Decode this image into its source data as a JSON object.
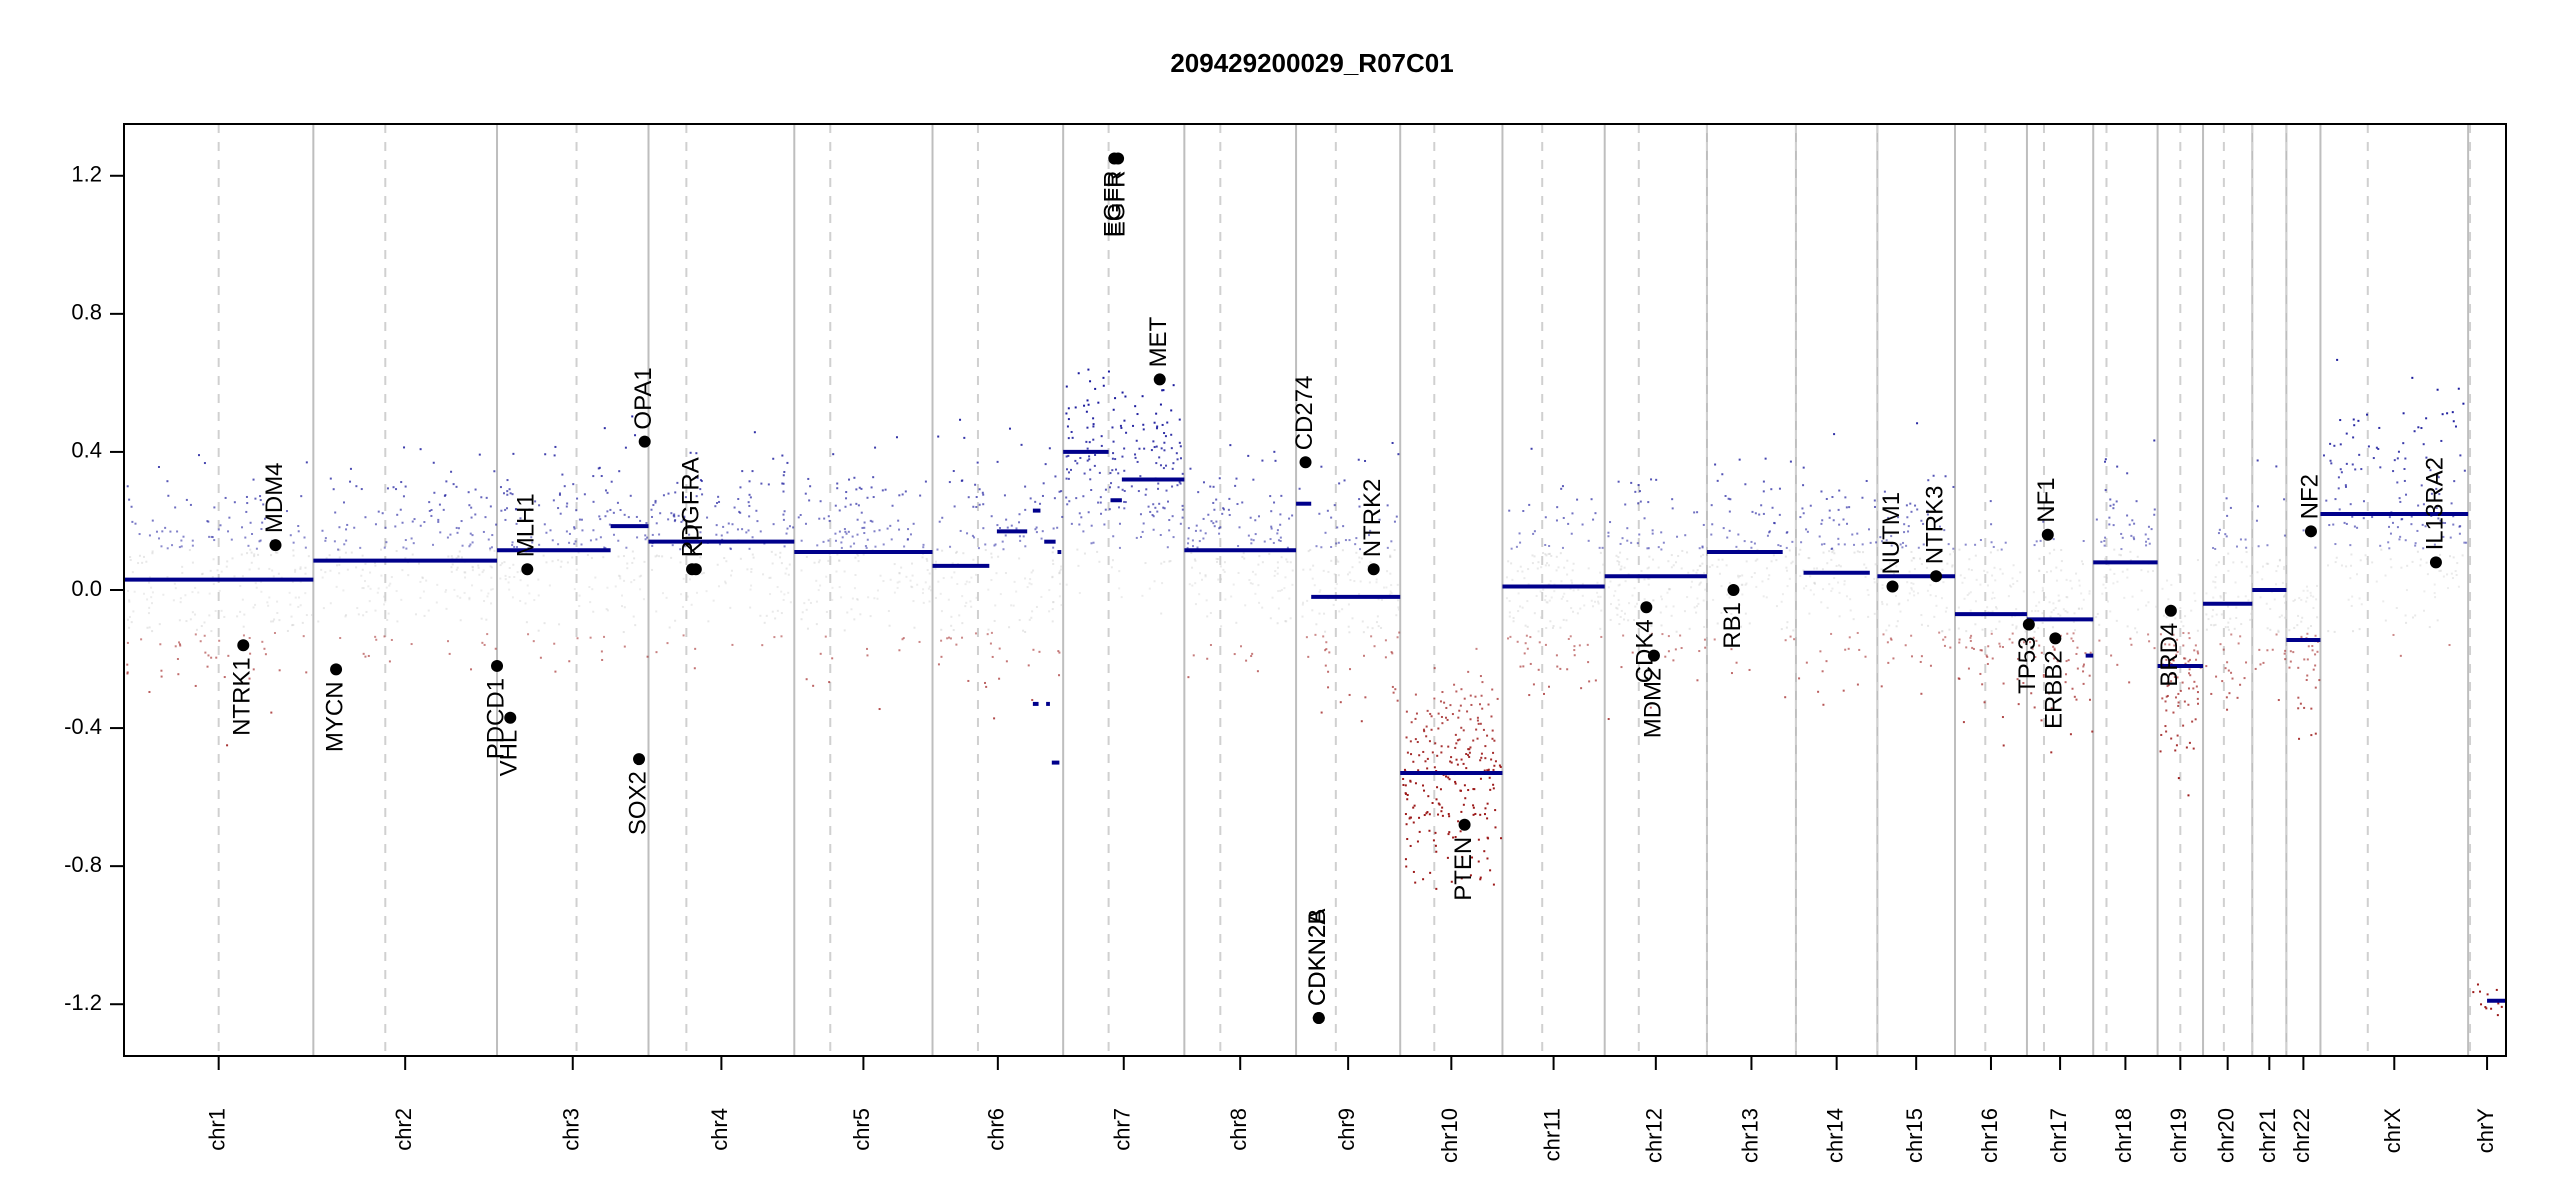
{
  "chart_data": {
    "type": "scatter",
    "title": "209429200029_R07C01",
    "ylim": [
      -1.35,
      1.35
    ],
    "yticks": [
      -1.2,
      -0.8,
      -0.4,
      0.0,
      0.4,
      0.8,
      1.2
    ],
    "ytick_labels": [
      "-1.2",
      "-0.8",
      "-0.4",
      "0.0",
      "0.4",
      "0.8",
      "1.2"
    ],
    "grid": "vertical chromosome boundaries (solid) and centromeres (dashed)",
    "colors": {
      "positive": "#1a1a9c",
      "negative": "#9c1a1a",
      "neutral": "#cccccc",
      "segment": "#00008b",
      "boundary": "#bebebe"
    },
    "chromosomes": [
      {
        "name": "chr1",
        "start": 0,
        "end": 1.0,
        "cent": 0.5
      },
      {
        "name": "chr2",
        "start": 1.0,
        "end": 1.97,
        "cent": 1.38
      },
      {
        "name": "chr3",
        "start": 1.97,
        "end": 2.77,
        "cent": 2.39
      },
      {
        "name": "chr4",
        "start": 2.77,
        "end": 3.54,
        "cent": 2.97
      },
      {
        "name": "chr5",
        "start": 3.54,
        "end": 4.27,
        "cent": 3.73
      },
      {
        "name": "chr6",
        "start": 4.27,
        "end": 4.96,
        "cent": 4.51
      },
      {
        "name": "chr7",
        "start": 4.96,
        "end": 5.6,
        "cent": 5.2
      },
      {
        "name": "chr8",
        "start": 5.6,
        "end": 6.19,
        "cent": 5.79
      },
      {
        "name": "chr9",
        "start": 6.19,
        "end": 6.74,
        "cent": 6.4
      },
      {
        "name": "chr10",
        "start": 6.74,
        "end": 7.28,
        "cent": 6.92
      },
      {
        "name": "chr11",
        "start": 7.28,
        "end": 7.82,
        "cent": 7.49
      },
      {
        "name": "chr12",
        "start": 7.82,
        "end": 8.36,
        "cent": 8.0
      },
      {
        "name": "chr13",
        "start": 8.36,
        "end": 8.83,
        "cent": 8.36
      },
      {
        "name": "chr14",
        "start": 8.83,
        "end": 9.26,
        "cent": 8.83
      },
      {
        "name": "chr15",
        "start": 9.26,
        "end": 9.67,
        "cent": 9.26
      },
      {
        "name": "chr16",
        "start": 9.67,
        "end": 10.05,
        "cent": 9.83
      },
      {
        "name": "chr17",
        "start": 10.05,
        "end": 10.4,
        "cent": 10.14
      },
      {
        "name": "chr18",
        "start": 10.4,
        "end": 10.74,
        "cent": 10.47
      },
      {
        "name": "chr19",
        "start": 10.74,
        "end": 10.98,
        "cent": 10.86
      },
      {
        "name": "chr20",
        "start": 10.98,
        "end": 11.24,
        "cent": 11.09
      },
      {
        "name": "chr21",
        "start": 11.24,
        "end": 11.42,
        "cent": 11.24
      },
      {
        "name": "chr22",
        "start": 11.42,
        "end": 11.6,
        "cent": 11.42
      },
      {
        "name": "chrX",
        "start": 11.6,
        "end": 12.38,
        "cent": 11.85
      },
      {
        "name": "chrY",
        "start": 12.38,
        "end": 12.58,
        "cent": 12.39
      }
    ],
    "segments": [
      {
        "chr": "chr1",
        "x0": 0.0,
        "x1": 1.0,
        "y": 0.03
      },
      {
        "chr": "chr2",
        "x0": 1.0,
        "x1": 1.97,
        "y": 0.085
      },
      {
        "chr": "chr3",
        "x0": 1.97,
        "x1": 2.57,
        "y": 0.115
      },
      {
        "chr": "chr3",
        "x0": 2.57,
        "x1": 2.77,
        "y": 0.185
      },
      {
        "chr": "chr4",
        "x0": 2.77,
        "x1": 3.54,
        "y": 0.14
      },
      {
        "chr": "chr5",
        "x0": 3.54,
        "x1": 4.27,
        "y": 0.11
      },
      {
        "chr": "chr6",
        "x0": 4.27,
        "x1": 4.57,
        "y": 0.07
      },
      {
        "chr": "chr6",
        "x0": 4.61,
        "x1": 4.77,
        "y": 0.17
      },
      {
        "chr": "chr6",
        "x0": 4.8,
        "x1": 4.84,
        "y": 0.23
      },
      {
        "chr": "chr6",
        "x0": 4.86,
        "x1": 4.92,
        "y": 0.14
      },
      {
        "chr": "chr6",
        "x0": 4.93,
        "x1": 4.95,
        "y": 0.11
      },
      {
        "chr": "chr6",
        "x0": 4.8,
        "x1": 4.83,
        "y": -0.33
      },
      {
        "chr": "chr6",
        "x0": 4.87,
        "x1": 4.89,
        "y": -0.33
      },
      {
        "chr": "chr6",
        "x0": 4.9,
        "x1": 4.94,
        "y": -0.5
      },
      {
        "chr": "chr7",
        "x0": 4.96,
        "x1": 5.2,
        "y": 0.4
      },
      {
        "chr": "chr7",
        "x0": 5.21,
        "x1": 5.27,
        "y": 0.26
      },
      {
        "chr": "chr7",
        "x0": 5.27,
        "x1": 5.6,
        "y": 0.32
      },
      {
        "chr": "chr8",
        "x0": 5.6,
        "x1": 6.19,
        "y": 0.115
      },
      {
        "chr": "chr9",
        "x0": 6.19,
        "x1": 6.27,
        "y": 0.25
      },
      {
        "chr": "chr9",
        "x0": 6.27,
        "x1": 6.74,
        "y": -0.02
      },
      {
        "chr": "chr10",
        "x0": 6.74,
        "x1": 7.28,
        "y": -0.53
      },
      {
        "chr": "chr11",
        "x0": 7.28,
        "x1": 7.82,
        "y": 0.01
      },
      {
        "chr": "chr12",
        "x0": 7.82,
        "x1": 8.36,
        "y": 0.04
      },
      {
        "chr": "chr13",
        "x0": 8.36,
        "x1": 8.76,
        "y": 0.11
      },
      {
        "chr": "chr14",
        "x0": 8.87,
        "x1": 9.22,
        "y": 0.05
      },
      {
        "chr": "chr15",
        "x0": 9.26,
        "x1": 9.67,
        "y": 0.04
      },
      {
        "chr": "chr16",
        "x0": 9.67,
        "x1": 10.05,
        "y": -0.07
      },
      {
        "chr": "chr17",
        "x0": 10.05,
        "x1": 10.4,
        "y": -0.085
      },
      {
        "chr": "chr17",
        "x0": 10.36,
        "x1": 10.4,
        "y": -0.19
      },
      {
        "chr": "chr18",
        "x0": 10.4,
        "x1": 10.74,
        "y": 0.08
      },
      {
        "chr": "chr19",
        "x0": 10.74,
        "x1": 10.98,
        "y": -0.22
      },
      {
        "chr": "chr20",
        "x0": 10.98,
        "x1": 11.24,
        "y": -0.04
      },
      {
        "chr": "chr21",
        "x0": 11.24,
        "x1": 11.42,
        "y": 0.0
      },
      {
        "chr": "chr22",
        "x0": 11.42,
        "x1": 11.6,
        "y": -0.145
      },
      {
        "chr": "chrX",
        "x0": 11.6,
        "x1": 12.38,
        "y": 0.22
      },
      {
        "chr": "chrY",
        "x0": 12.48,
        "x1": 12.58,
        "y": -1.19
      }
    ],
    "genes": [
      {
        "name": "NTRK1",
        "x": 0.63,
        "y": -0.16,
        "label_side": "below"
      },
      {
        "name": "MDM4",
        "x": 0.8,
        "y": 0.13,
        "label_side": "above"
      },
      {
        "name": "MYCN",
        "x": 1.12,
        "y": -0.23,
        "label_side": "below"
      },
      {
        "name": "PDCD1",
        "x": 1.97,
        "y": -0.22,
        "label_side": "below"
      },
      {
        "name": "VHL",
        "x": 2.04,
        "y": -0.37,
        "label_side": "below"
      },
      {
        "name": "MLH1",
        "x": 2.13,
        "y": 0.06,
        "label_side": "above"
      },
      {
        "name": "SOX2",
        "x": 2.72,
        "y": -0.49,
        "label_side": "below"
      },
      {
        "name": "OPA1",
        "x": 2.75,
        "y": 0.43,
        "label_side": "above"
      },
      {
        "name": "PDGFRA",
        "x": 3.0,
        "y": 0.06,
        "label_side": "above"
      },
      {
        "name": "KIT",
        "x": 3.02,
        "y": 0.06,
        "label_side": "above"
      },
      {
        "name": "EGFR",
        "x": 5.23,
        "y": 1.25,
        "label_side": "below"
      },
      {
        "name": "EGFR",
        "x": 5.25,
        "y": 1.25,
        "label_side": "below"
      },
      {
        "name": "MET",
        "x": 5.47,
        "y": 0.61,
        "label_side": "above"
      },
      {
        "name": "CD274",
        "x": 6.24,
        "y": 0.37,
        "label_side": "above"
      },
      {
        "name": "CDKN2A",
        "x": 6.31,
        "y": -1.24,
        "label_side": "above"
      },
      {
        "name": "CDKN2B",
        "x": 6.31,
        "y": -1.24,
        "label_side": "above"
      },
      {
        "name": "NTRK2",
        "x": 6.6,
        "y": 0.06,
        "label_side": "above"
      },
      {
        "name": "PTEN",
        "x": 7.08,
        "y": -0.68,
        "label_side": "below"
      },
      {
        "name": "CDK4",
        "x": 8.04,
        "y": -0.05,
        "label_side": "below"
      },
      {
        "name": "MDM2",
        "x": 8.08,
        "y": -0.19,
        "label_side": "below"
      },
      {
        "name": "RB1",
        "x": 8.5,
        "y": 0.0,
        "label_side": "below"
      },
      {
        "name": "NUTM1",
        "x": 9.34,
        "y": 0.01,
        "label_side": "above"
      },
      {
        "name": "NTRK3",
        "x": 9.57,
        "y": 0.04,
        "label_side": "above"
      },
      {
        "name": "TP53",
        "x": 10.06,
        "y": -0.1,
        "label_side": "below"
      },
      {
        "name": "NF1",
        "x": 10.16,
        "y": 0.16,
        "label_side": "above"
      },
      {
        "name": "ERBB2",
        "x": 10.2,
        "y": -0.14,
        "label_side": "below"
      },
      {
        "name": "BRD4",
        "x": 10.81,
        "y": -0.06,
        "label_side": "below"
      },
      {
        "name": "NF2",
        "x": 11.55,
        "y": 0.17,
        "label_side": "above"
      },
      {
        "name": "IL13RA2",
        "x": 12.21,
        "y": 0.08,
        "label_side": "above"
      }
    ],
    "probe_density": [
      {
        "chr": "chr1",
        "mean": 0.03,
        "sd": 0.22,
        "n": 260
      },
      {
        "chr": "chr2",
        "mean": 0.085,
        "sd": 0.2,
        "n": 240
      },
      {
        "chr": "chr3",
        "mean": 0.13,
        "sd": 0.2,
        "n": 200
      },
      {
        "chr": "chr4",
        "mean": 0.14,
        "sd": 0.2,
        "n": 190
      },
      {
        "chr": "chr5",
        "mean": 0.11,
        "sd": 0.2,
        "n": 190
      },
      {
        "chr": "chr6",
        "mean": 0.07,
        "sd": 0.24,
        "n": 190
      },
      {
        "chr": "chr7",
        "mean": 0.34,
        "sd": 0.22,
        "n": 220
      },
      {
        "chr": "chr8",
        "mean": 0.115,
        "sd": 0.2,
        "n": 160
      },
      {
        "chr": "chr9",
        "mean": 0.02,
        "sd": 0.22,
        "n": 150
      },
      {
        "chr": "chr10",
        "mean": -0.53,
        "sd": 0.2,
        "n": 240
      },
      {
        "chr": "chr11",
        "mean": 0.01,
        "sd": 0.2,
        "n": 170
      },
      {
        "chr": "chr12",
        "mean": 0.04,
        "sd": 0.2,
        "n": 170
      },
      {
        "chr": "chr13",
        "mean": 0.11,
        "sd": 0.2,
        "n": 120
      },
      {
        "chr": "chr14",
        "mean": 0.05,
        "sd": 0.2,
        "n": 120
      },
      {
        "chr": "chr15",
        "mean": 0.04,
        "sd": 0.2,
        "n": 120
      },
      {
        "chr": "chr16",
        "mean": -0.07,
        "sd": 0.2,
        "n": 110
      },
      {
        "chr": "chr17",
        "mean": -0.085,
        "sd": 0.2,
        "n": 120
      },
      {
        "chr": "chr18",
        "mean": 0.08,
        "sd": 0.2,
        "n": 90
      },
      {
        "chr": "chr19",
        "mean": -0.22,
        "sd": 0.2,
        "n": 100
      },
      {
        "chr": "chr20",
        "mean": -0.04,
        "sd": 0.2,
        "n": 80
      },
      {
        "chr": "chr21",
        "mean": 0.0,
        "sd": 0.2,
        "n": 50
      },
      {
        "chr": "chr22",
        "mean": -0.145,
        "sd": 0.2,
        "n": 60
      },
      {
        "chr": "chrX",
        "mean": 0.22,
        "sd": 0.22,
        "n": 200
      },
      {
        "chr": "chrY",
        "mean": -1.19,
        "sd": 0.05,
        "n": 12
      }
    ]
  }
}
